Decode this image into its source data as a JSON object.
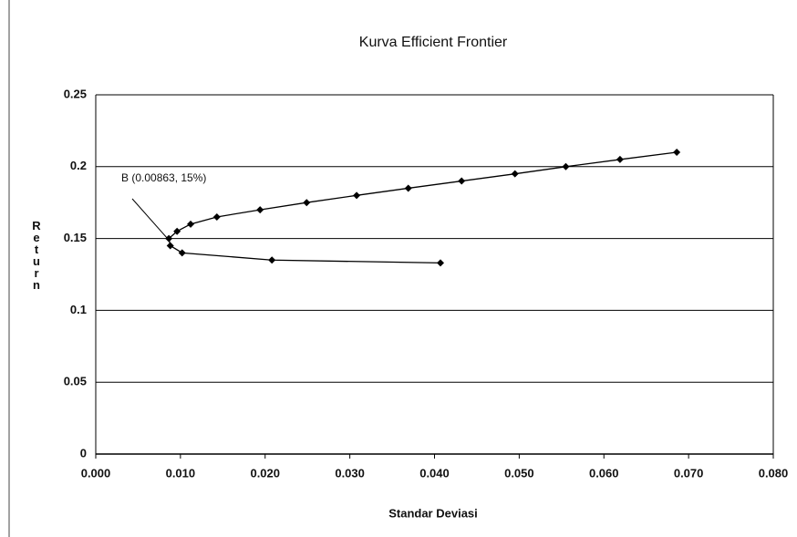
{
  "chart_data": {
    "type": "line",
    "title": "Kurva Efficient Frontier",
    "x_label": "Standar Deviasi",
    "y_label": "Return",
    "annotation": "B (0.00863, 15%)",
    "series": [
      {
        "color": "#000000",
        "x": [
          0.0407,
          0.0208,
          0.0102,
          0.0088,
          0.00863,
          0.0096,
          0.0112,
          0.0143,
          0.0194,
          0.0249,
          0.0308,
          0.0369,
          0.0432,
          0.0495,
          0.0555,
          0.0619,
          0.0686
        ],
        "values": [
          0.133,
          0.135,
          0.14,
          0.145,
          0.15,
          0.155,
          0.16,
          0.165,
          0.17,
          0.175,
          0.18,
          0.185,
          0.19,
          0.195,
          0.2,
          0.205,
          0.21
        ]
      }
    ],
    "xlim": [
      0,
      0.08
    ],
    "xticks": [
      {
        "value": 0,
        "label": "0.000"
      },
      {
        "value": 0.01,
        "label": "0.010"
      },
      {
        "value": 0.02,
        "label": "0.020"
      },
      {
        "value": 0.03,
        "label": "0.030"
      },
      {
        "value": 0.04,
        "label": "0.040"
      },
      {
        "value": 0.05,
        "label": "0.050"
      },
      {
        "value": 0.06,
        "label": "0.060"
      },
      {
        "value": 0.07,
        "label": "0.070"
      },
      {
        "value": 0.08,
        "label": "0.080"
      }
    ],
    "ylim": [
      0,
      0.25
    ],
    "yticks": [
      0,
      0.05,
      0.1,
      0.15,
      0.2,
      0.25
    ],
    "grid": true
  }
}
